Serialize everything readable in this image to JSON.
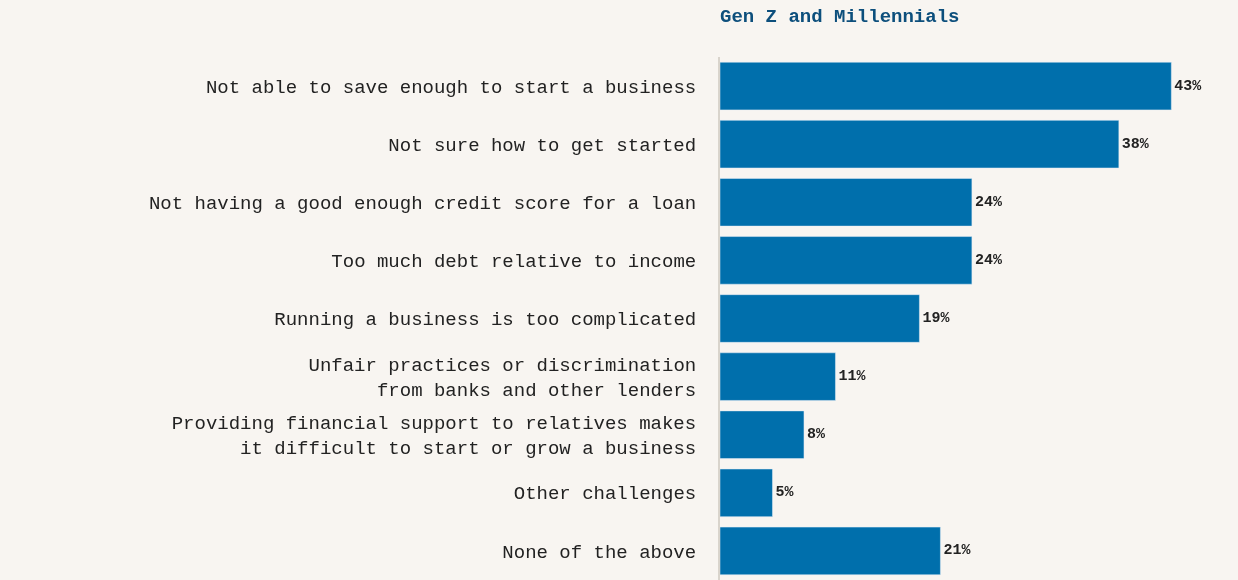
{
  "chart_data": {
    "type": "bar",
    "orientation": "horizontal",
    "title": "Gen Z and Millennials",
    "categories": [
      "Not able to save enough to start a business",
      "Not sure how to get started",
      "Not having a good enough credit score for a loan",
      "Too much debt relative to income",
      "Running a business is too complicated",
      "Unfair practices or discrimination\nfrom banks and other lenders",
      "Providing financial support to relatives makes\nit difficult to start or grow a business",
      "Other challenges",
      "None of the above"
    ],
    "values": [
      43,
      38,
      24,
      24,
      19,
      11,
      8,
      5,
      21
    ],
    "value_labels": [
      "43%",
      "38%",
      "24%",
      "24%",
      "19%",
      "11%",
      "8%",
      "5%",
      "21%"
    ],
    "color": "#006fac",
    "grid": false,
    "legend": false
  }
}
